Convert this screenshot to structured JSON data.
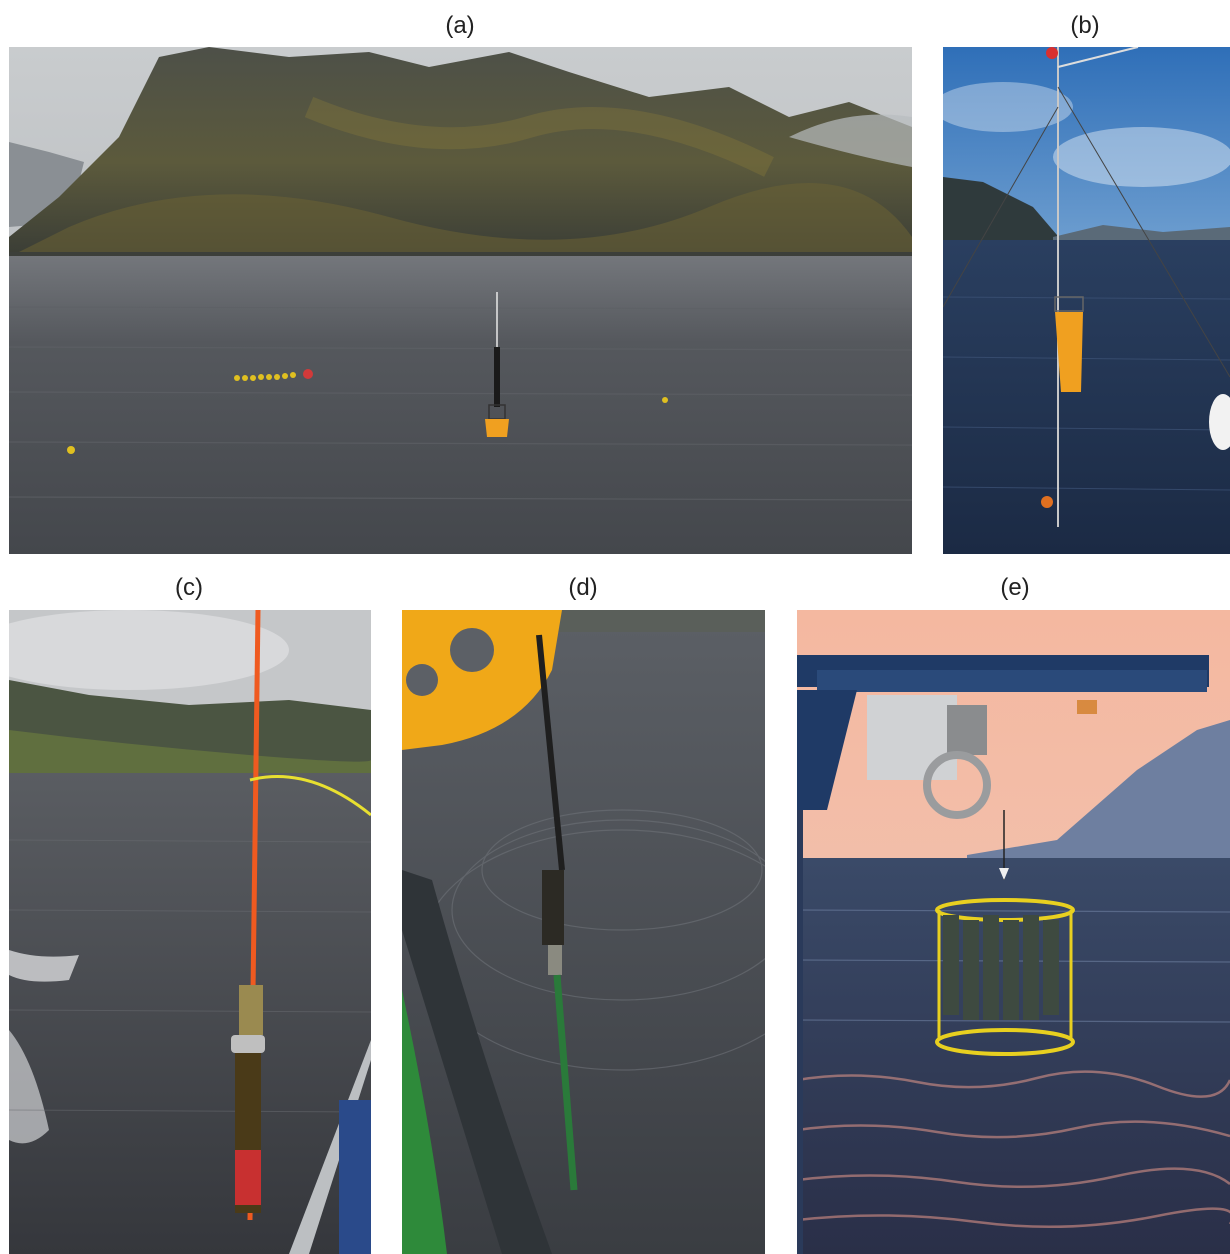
{
  "panels": [
    {
      "label": "(a)",
      "scene": "fjord-buoy"
    },
    {
      "label": "(b)",
      "scene": "buoy-lift"
    },
    {
      "label": "(c)",
      "scene": "sensor-pole"
    },
    {
      "label": "(d)",
      "scene": "probe-pole"
    },
    {
      "label": "(e)",
      "scene": "ctd-rosette-sunset"
    }
  ],
  "colors": {
    "buoy_orange": "#f0a020",
    "water_grey": "#4c4e53",
    "water_dark": "#2b3d58",
    "sunset_pink": "#e89a8c",
    "rosette_yellow": "#e8d020"
  }
}
